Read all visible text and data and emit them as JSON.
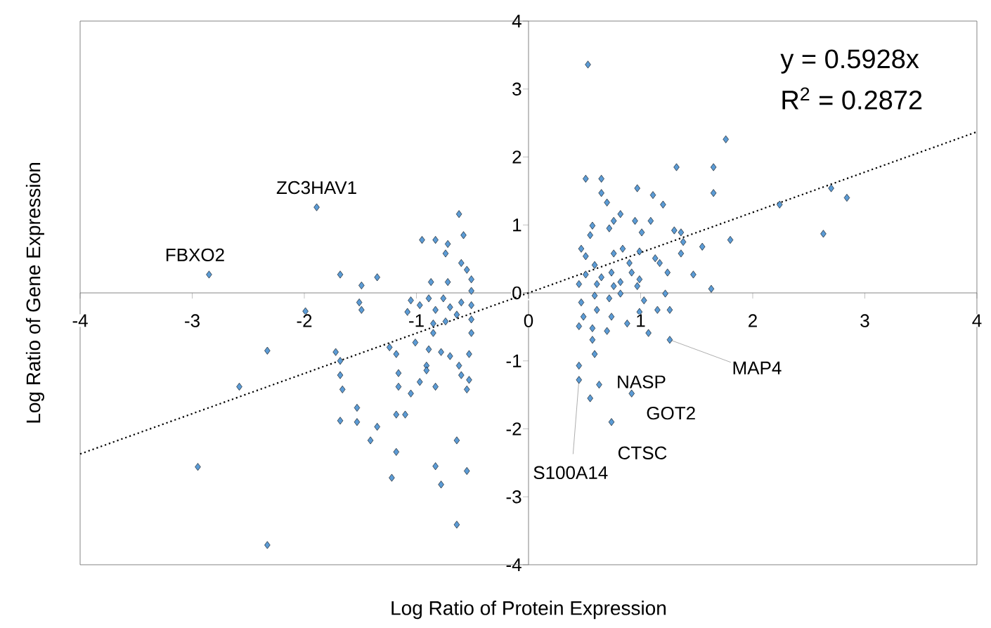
{
  "chart_data": {
    "type": "scatter",
    "xlabel": "Log Ratio of Protein Expression",
    "ylabel": "Log Ratio of Gene Expression",
    "xlim": [
      -4,
      4
    ],
    "ylim": [
      -4,
      4
    ],
    "xticks": [
      -4,
      -3,
      -2,
      -1,
      0,
      1,
      2,
      3,
      4
    ],
    "yticks": [
      -4,
      -3,
      -2,
      -1,
      0,
      1,
      2,
      3,
      4
    ],
    "series": [
      {
        "color": "#5b9bd5",
        "marker": "diamond",
        "x": [
          -2.85,
          -1.89,
          -1.99,
          -2.33,
          -2.58,
          -2.95,
          -2.33,
          -1.68,
          -1.49,
          -1.35,
          -1.51,
          -1.49,
          -1.72,
          -1.68,
          -1.68,
          -1.66,
          -1.68,
          -1.53,
          -1.53,
          -1.35,
          -1.41,
          -1.24,
          -1.18,
          -1.16,
          -1.16,
          -1.05,
          -1.18,
          -1.1,
          -1.18,
          -1.22,
          -0.95,
          -0.83,
          -0.72,
          -0.74,
          -0.62,
          -0.58,
          -0.87,
          -0.72,
          -0.6,
          -0.55,
          -0.51,
          -0.51,
          -1.05,
          -1.08,
          -0.97,
          -0.89,
          -0.83,
          -0.76,
          -0.7,
          -0.64,
          -0.6,
          -0.51,
          -0.51,
          -0.85,
          -0.74,
          -0.51,
          -1.01,
          -0.85,
          -0.89,
          -0.78,
          -0.7,
          -0.91,
          -0.91,
          -0.97,
          -0.83,
          -0.62,
          -0.6,
          -0.53,
          -0.53,
          -0.55,
          -0.64,
          -0.83,
          -0.78,
          -0.55,
          -0.64,
          0.53,
          1.76,
          1.32,
          1.65,
          0.51,
          0.65,
          0.97,
          1.11,
          1.2,
          1.65,
          0.65,
          0.7,
          0.82,
          0.76,
          0.72,
          0.57,
          0.95,
          1.01,
          1.09,
          1.3,
          1.36,
          1.38,
          1.36,
          1.55,
          1.8,
          0.55,
          0.47,
          0.51,
          0.59,
          0.76,
          0.84,
          0.9,
          0.99,
          1.13,
          1.24,
          1.17,
          1.47,
          1.63,
          0.51,
          0.45,
          0.65,
          0.74,
          0.82,
          0.92,
          0.99,
          0.61,
          0.76,
          0.97,
          0.47,
          0.59,
          0.72,
          0.82,
          1.03,
          1.15,
          1.26,
          1.22,
          0.99,
          0.49,
          0.61,
          0.74,
          0.45,
          0.57,
          0.7,
          0.88,
          1.07,
          1.26,
          0.57,
          0.59,
          0.45,
          0.45,
          0.63,
          0.55,
          0.92,
          0.74,
          2.24,
          2.7,
          2.84,
          2.63
        ],
        "values": [
          0.27,
          1.26,
          -0.27,
          -0.85,
          -1.38,
          -2.56,
          -3.71,
          0.27,
          0.11,
          0.23,
          -0.14,
          -0.25,
          -0.87,
          -1.0,
          -1.21,
          -1.42,
          -1.88,
          -1.9,
          -1.69,
          -1.97,
          -2.17,
          -0.8,
          -0.9,
          -1.18,
          -1.38,
          -1.48,
          -1.79,
          -1.79,
          -2.34,
          -2.72,
          0.78,
          0.78,
          0.72,
          0.58,
          1.16,
          0.85,
          0.16,
          0.16,
          0.44,
          0.34,
          0.2,
          0.03,
          -0.11,
          -0.28,
          -0.18,
          -0.08,
          -0.25,
          -0.08,
          -0.21,
          -0.32,
          -0.14,
          -0.18,
          -0.39,
          -0.45,
          -0.42,
          -0.59,
          -0.73,
          -0.59,
          -0.83,
          -0.87,
          -0.93,
          -1.07,
          -1.14,
          -1.31,
          -1.38,
          -1.07,
          -1.21,
          -0.9,
          -1.28,
          -1.42,
          -2.17,
          -2.55,
          -2.82,
          -2.62,
          -3.41,
          3.36,
          2.26,
          1.85,
          1.85,
          1.68,
          1.68,
          1.54,
          1.44,
          1.3,
          1.47,
          1.47,
          1.33,
          1.16,
          1.06,
          0.95,
          0.99,
          1.06,
          0.89,
          1.06,
          0.92,
          0.89,
          0.75,
          0.58,
          0.68,
          0.78,
          0.85,
          0.65,
          0.54,
          0.41,
          0.58,
          0.65,
          0.44,
          0.61,
          0.51,
          0.3,
          0.44,
          0.27,
          0.06,
          0.27,
          0.13,
          0.23,
          0.3,
          0.16,
          0.3,
          0.2,
          0.13,
          0.1,
          0.1,
          -0.14,
          -0.04,
          -0.08,
          -0.01,
          -0.11,
          -0.25,
          -0.25,
          -0.01,
          -0.28,
          -0.35,
          -0.25,
          -0.35,
          -0.49,
          -0.52,
          -0.56,
          -0.45,
          -0.59,
          -0.69,
          -0.69,
          -0.9,
          -1.07,
          -1.28,
          -1.35,
          -1.55,
          -1.48,
          -1.9,
          1.3,
          1.54,
          1.4,
          0.87
        ]
      },
      {
        "type": "line",
        "color": "#000000",
        "line_style": "dotted",
        "marker": "none",
        "x": [
          -4,
          4
        ],
        "values": [
          -2.37,
          2.37
        ]
      }
    ],
    "annotations": [
      "y = 0.5928x",
      "R$^{2}$ = 0.2872",
      {
        "text": "FBXO2",
        "x": -2.85,
        "y": 0.27
      },
      {
        "text": "ZC3HAV1",
        "x": -1.89,
        "y": 1.26
      },
      {
        "text": "NASP",
        "x": 0.63,
        "y": -1.35
      },
      {
        "text": "GOT2",
        "x": 0.92,
        "y": -1.48
      },
      {
        "text": "CTSC",
        "x": 0.74,
        "y": -1.9
      },
      {
        "text": "MAP4",
        "x": 1.26,
        "y": -0.69
      },
      {
        "text": "S100A14",
        "x": 0.45,
        "y": -1.28
      }
    ]
  }
}
